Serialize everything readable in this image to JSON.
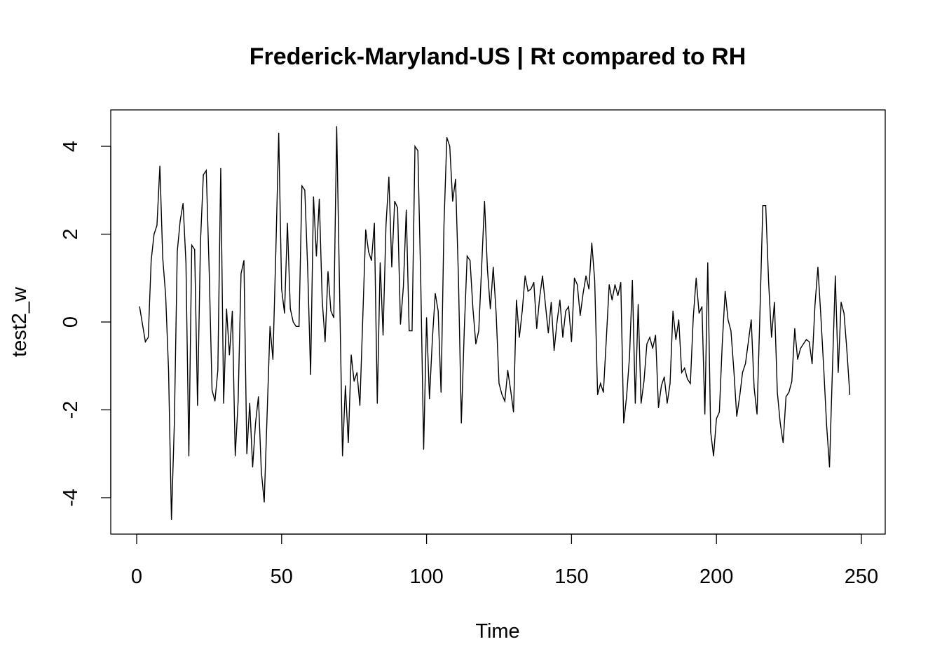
{
  "chart_data": {
    "type": "line",
    "title": "Frederick-Maryland-US | Rt compared to RH",
    "xlabel": "Time",
    "ylabel": "test2_w",
    "xlim": [
      1,
      248
    ],
    "ylim": [
      -4.5,
      4.5
    ],
    "x_ticks": [
      0,
      50,
      100,
      150,
      200,
      250
    ],
    "y_ticks": [
      -4,
      -2,
      0,
      2,
      4
    ],
    "grid": false,
    "line_color": "#000000",
    "series": [
      {
        "x_start": 1,
        "x_step": 1,
        "values": [
          0.35,
          -0.05,
          -0.45,
          -0.35,
          1.4,
          2.0,
          2.2,
          3.55,
          1.45,
          0.6,
          -1.1,
          -4.5,
          -2.3,
          1.6,
          2.3,
          2.7,
          1.35,
          -3.05,
          1.75,
          1.65,
          -1.9,
          1.8,
          3.35,
          3.45,
          1.2,
          -1.55,
          -1.8,
          -1.1,
          3.5,
          -1.85,
          0.3,
          -0.75,
          0.25,
          -3.05,
          -1.8,
          1.1,
          1.4,
          -3.0,
          -1.85,
          -3.3,
          -2.3,
          -1.7,
          -3.4,
          -4.1,
          -2.1,
          -0.1,
          -0.85,
          1.6,
          4.3,
          0.75,
          0.2,
          2.25,
          0.3,
          0.0,
          -0.1,
          -0.1,
          3.1,
          3.0,
          1.2,
          -1.2,
          2.85,
          1.5,
          2.8,
          0.5,
          -0.45,
          1.15,
          0.25,
          0.1,
          4.45,
          0.7,
          -3.05,
          -1.45,
          -2.75,
          -0.75,
          -1.35,
          -1.15,
          -1.9,
          0.1,
          2.1,
          1.6,
          1.4,
          2.25,
          -1.85,
          1.35,
          -0.3,
          2.2,
          3.3,
          1.25,
          2.75,
          2.6,
          -0.05,
          0.8,
          2.55,
          -0.2,
          -0.2,
          4.0,
          3.9,
          0.9,
          -2.9,
          0.1,
          -1.75,
          -0.4,
          0.65,
          0.25,
          -1.6,
          2.2,
          4.2,
          4.0,
          2.75,
          3.25,
          1.0,
          -2.3,
          -0.2,
          1.5,
          1.4,
          0.3,
          -0.5,
          -0.2,
          1.25,
          2.75,
          1.2,
          0.3,
          1.25,
          0.2,
          -1.4,
          -1.65,
          -1.8,
          -1.1,
          -1.55,
          -2.05,
          0.5,
          -0.35,
          0.25,
          1.05,
          0.7,
          0.75,
          0.9,
          -0.15,
          0.55,
          1.05,
          0.4,
          -0.25,
          0.45,
          -0.65,
          0.0,
          0.5,
          -0.35,
          0.25,
          0.35,
          -0.45,
          1.0,
          0.85,
          0.15,
          0.65,
          1.05,
          0.75,
          1.8,
          0.95,
          -1.65,
          -1.4,
          -1.6,
          -0.4,
          0.85,
          0.5,
          0.85,
          0.6,
          0.9,
          -2.3,
          -1.7,
          -0.8,
          0.95,
          -1.85,
          0.4,
          -1.85,
          -1.35,
          -0.5,
          -0.35,
          -0.6,
          -0.3,
          -1.95,
          -1.45,
          -1.25,
          -1.85,
          -1.4,
          0.25,
          -0.4,
          0.05,
          -1.15,
          -1.05,
          -1.3,
          -1.4,
          0.1,
          1.0,
          0.2,
          0.35,
          -2.1,
          1.35,
          -2.5,
          -3.05,
          -2.2,
          -2.05,
          -0.5,
          0.7,
          0.05,
          -0.2,
          -1.1,
          -2.15,
          -1.7,
          -1.15,
          -0.95,
          -0.45,
          0.05,
          -1.5,
          -2.1,
          0.2,
          2.65,
          2.65,
          0.9,
          -0.35,
          0.45,
          -1.6,
          -2.3,
          -2.75,
          -1.7,
          -1.6,
          -1.35,
          -0.15,
          -0.85,
          -0.6,
          -0.5,
          -0.4,
          -0.45,
          -0.95,
          0.4,
          1.25,
          0.15,
          -1.05,
          -2.35,
          -3.3,
          -1.1,
          1.05,
          -1.15,
          0.45,
          0.2,
          -0.65,
          -1.65
        ]
      }
    ]
  }
}
